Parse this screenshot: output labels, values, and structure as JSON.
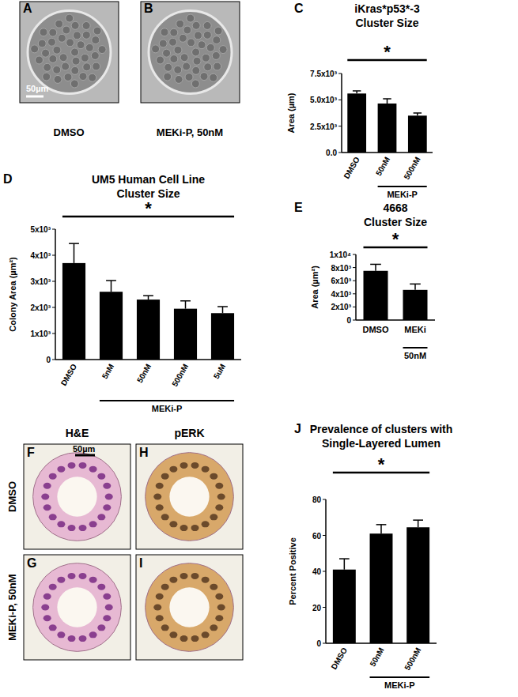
{
  "chart_data": [
    {
      "panel": "C",
      "type": "bar",
      "title": "iKras*p53*-3",
      "subtitle": "Cluster Size",
      "y_label": "Area (µm)",
      "categories": [
        "DMSO",
        "50nM",
        "500nM"
      ],
      "values": [
        5600,
        4650,
        3500
      ],
      "errors": [
        250,
        450,
        250
      ],
      "color": "#000000",
      "ylim": [
        0,
        7500
      ],
      "yticks": [
        {
          "value": 0,
          "label": "0.0"
        },
        {
          "value": 2500,
          "label": "2.5x10³"
        },
        {
          "value": 5000,
          "label": "5.0x10³"
        },
        {
          "value": 7500,
          "label": "7.5x10³"
        }
      ],
      "annotation": "*",
      "group_label": "MEKi-P"
    },
    {
      "panel": "D",
      "type": "bar",
      "title": "UM5 Human Cell Line",
      "subtitle": "Cluster Size",
      "y_label": "Colony Area (µm²)",
      "categories": [
        "DMSO",
        "5nM",
        "50nM",
        "500nM",
        "5uM"
      ],
      "values": [
        3700,
        2600,
        2300,
        1950,
        1780
      ],
      "errors": [
        750,
        430,
        150,
        300,
        250
      ],
      "color": "#000000",
      "ylim": [
        0,
        5000
      ],
      "yticks": [
        0,
        {
          "value": 1000,
          "label": "1x10³"
        },
        {
          "value": 2000,
          "label": "2x10³"
        },
        {
          "value": 3000,
          "label": "3x10³"
        },
        {
          "value": 4000,
          "label": "4x10³"
        },
        {
          "value": 5000,
          "label": "5x10³"
        }
      ],
      "annotation": "*",
      "group_label": "MEKi-P"
    },
    {
      "panel": "E",
      "type": "bar",
      "title": "4668",
      "subtitle": "Cluster Size",
      "y_label": "Area (µm²)",
      "categories": [
        "DMSO",
        "MEKi"
      ],
      "values": [
        7500,
        4600
      ],
      "errors": [
        1000,
        900
      ],
      "color": "#000000",
      "ylim": [
        0,
        10000
      ],
      "yticks": [
        0,
        {
          "value": 2000,
          "label": "2x10³"
        },
        {
          "value": 4000,
          "label": "4x10³"
        },
        {
          "value": 6000,
          "label": "6x10³"
        },
        {
          "value": 8000,
          "label": "8x10³"
        },
        {
          "value": 10000,
          "label": "1x10⁴"
        }
      ],
      "annotation": "*",
      "group_label": "50nM"
    },
    {
      "panel": "J",
      "type": "bar",
      "title": "Prevalence of clusters with",
      "subtitle": "Single-Layered Lumen",
      "y_label": "Percent  Positive",
      "categories": [
        "DMSO",
        "50nM",
        "500nM"
      ],
      "values": [
        41,
        61,
        64.5
      ],
      "errors": [
        6,
        5,
        4
      ],
      "color": "#000000",
      "ylim": [
        0,
        80
      ],
      "yticks": [
        0,
        20,
        40,
        60,
        80
      ],
      "annotation": "*",
      "group_label": "MEKi-P"
    }
  ],
  "images": {
    "top": [
      {
        "panel": "A",
        "caption": "DMSO",
        "scale_bar": "50µm"
      },
      {
        "panel": "B",
        "caption": "MEKi-P, 50nM"
      }
    ],
    "grid": {
      "columns": [
        "H&E",
        "pERK"
      ],
      "rows": [
        "DMSO",
        "MEKi-P, 50nM"
      ],
      "panels": [
        [
          "F",
          "H"
        ],
        [
          "G",
          "I"
        ]
      ],
      "scale_bar": "50µm"
    }
  }
}
